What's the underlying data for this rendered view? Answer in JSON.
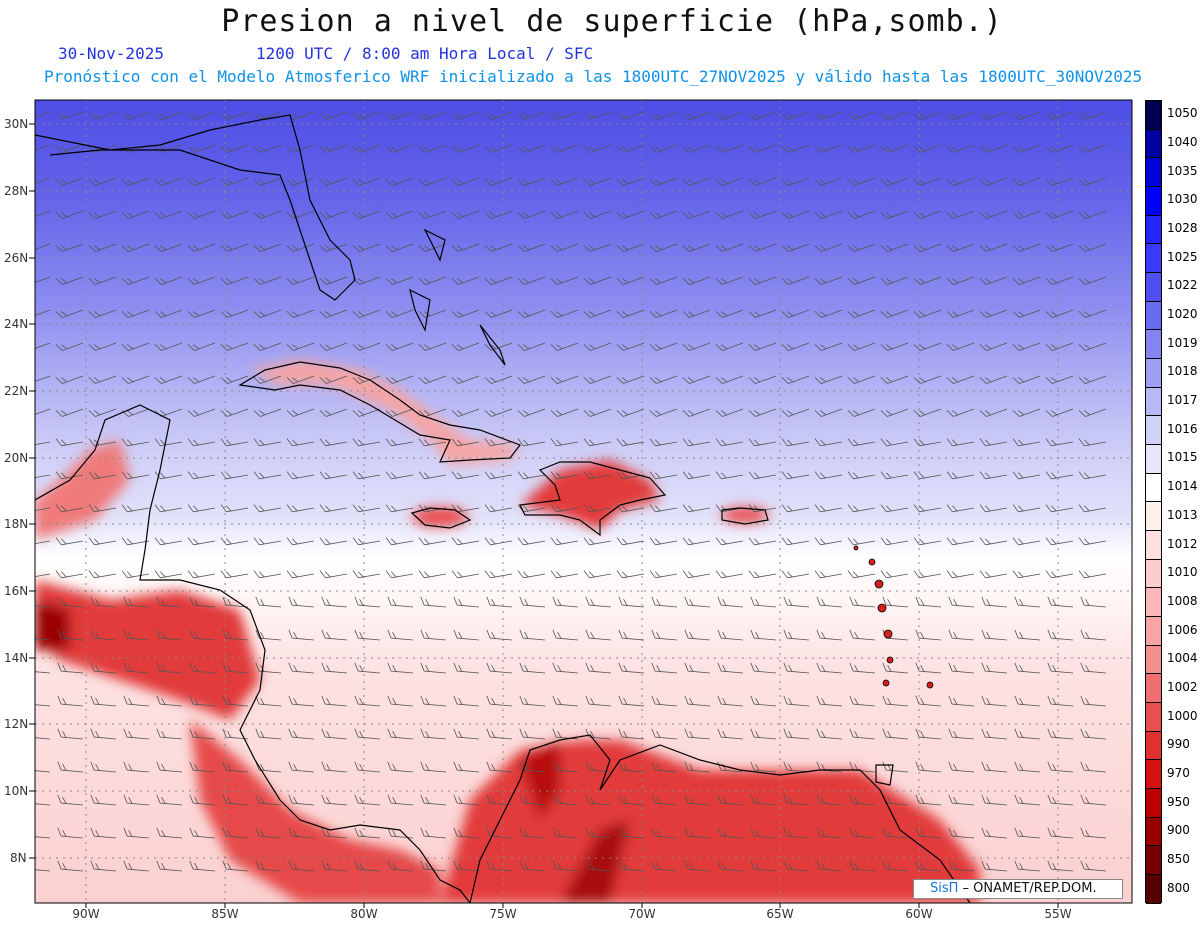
{
  "title": "Presion a nivel de superficie (hPa,somb.)",
  "date": "30-Nov-2025",
  "valid_time": "1200 UTC / 8:00 am Hora Local / SFC",
  "subtitle": "Pronóstico con el Modelo Atmosferico WRF inicializado a las 1800UTC_27NOV2025 y válido hasta las  1800UTC_30NOV2025",
  "credit": {
    "brand": "SisΠ",
    "rest": " – ONAMET/REP.DOM."
  },
  "lat_labels": [
    "30N",
    "28N",
    "26N",
    "24N",
    "22N",
    "20N",
    "18N",
    "16N",
    "14N",
    "12N",
    "10N",
    "8N"
  ],
  "lon_labels": [
    "90W",
    "85W",
    "80W",
    "75W",
    "70W",
    "65W",
    "60W",
    "55W"
  ],
  "colorbar": {
    "labels": [
      "1050",
      "1040",
      "1035",
      "1030",
      "1028",
      "1025",
      "1022",
      "1020",
      "1019",
      "1018",
      "1017",
      "1016",
      "1015",
      "1014",
      "1013",
      "1012",
      "1010",
      "1008",
      "1006",
      "1004",
      "1002",
      "1000",
      "990",
      "970",
      "950",
      "900",
      "850",
      "800"
    ],
    "colors": [
      "#00004f",
      "#0000a0",
      "#0000d8",
      "#0000ff",
      "#2424ff",
      "#3a3aff",
      "#5050f2",
      "#6a6af2",
      "#8484f2",
      "#9e9ef2",
      "#b8b8f5",
      "#d2d2f8",
      "#e6e6fb",
      "#ffffff",
      "#fff0f0",
      "#ffe0e0",
      "#fdcccc",
      "#fcb8b8",
      "#f8a4a4",
      "#f49090",
      "#ef7070",
      "#e85050",
      "#e03030",
      "#d41010",
      "#bb0000",
      "#990000",
      "#770000",
      "#550000"
    ]
  }
}
